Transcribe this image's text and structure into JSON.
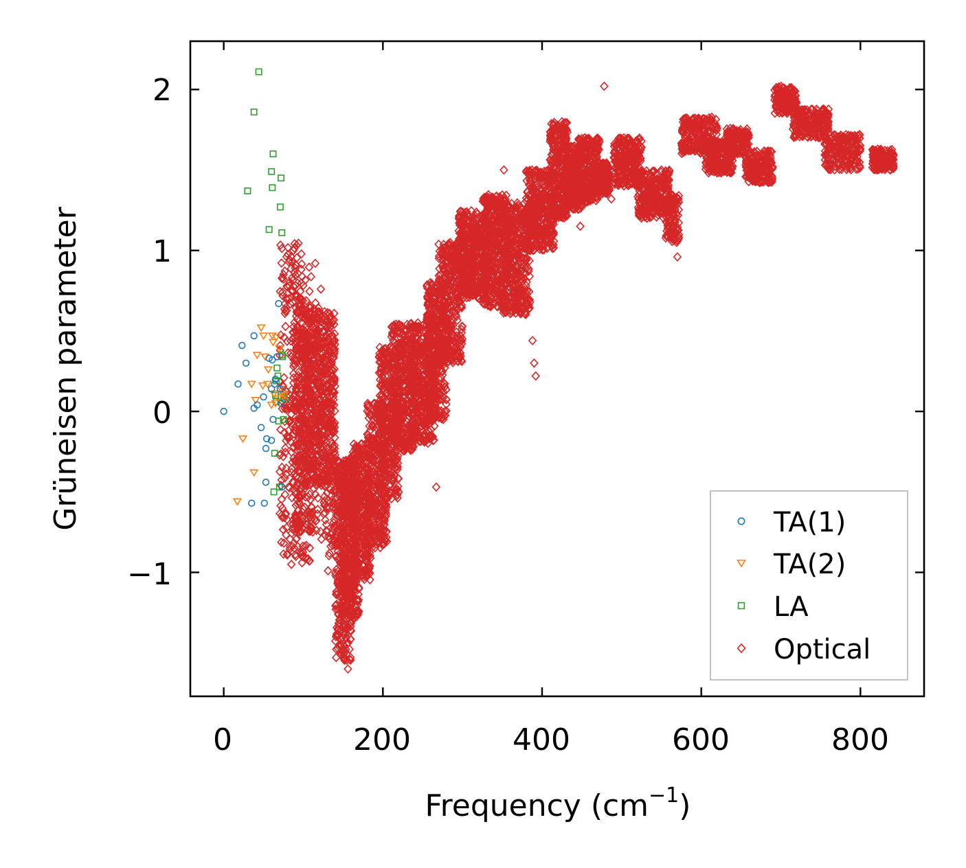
{
  "colors": {
    "TA(1)": "#1f77b4",
    "TA(2)": "#ff7f0e",
    "LA": "#2ca02c",
    "Optical": "#d62728"
  },
  "chart_data": {
    "type": "scatter",
    "title": "",
    "xlabel": "Frequency (cm",
    "xlabel_superscript": "−1",
    "xlabel_suffix": ")",
    "ylabel": "Grüneisen parameter",
    "xlim": [
      -42,
      880
    ],
    "ylim": [
      -1.77,
      2.3
    ],
    "xticks": [
      0,
      200,
      400,
      600,
      800
    ],
    "xtick_labels": [
      "0",
      "200",
      "400",
      "600",
      "800"
    ],
    "yticks": [
      -1,
      0,
      1,
      2
    ],
    "ytick_labels": [
      "−1",
      "0",
      "1",
      "2"
    ],
    "grid": false,
    "legend": {
      "position": "bottom-right",
      "entries": [
        "TA(1)",
        "TA(2)",
        "LA",
        "Optical"
      ]
    },
    "series": [
      {
        "name": "TA(1)",
        "marker": "circle",
        "points": [
          [
            0,
            0
          ],
          [
            18,
            0.17
          ],
          [
            23,
            0.41
          ],
          [
            28,
            0.3
          ],
          [
            35,
            -0.57
          ],
          [
            38,
            0.47
          ],
          [
            38,
            0.02
          ],
          [
            42,
            0.04
          ],
          [
            47,
            -0.1
          ],
          [
            50,
            0.09
          ],
          [
            51,
            -0.57
          ],
          [
            53,
            -0.44
          ],
          [
            53,
            -0.23
          ],
          [
            54,
            -0.17
          ],
          [
            57,
            0.33
          ],
          [
            60,
            -0.18
          ],
          [
            60,
            0.14
          ],
          [
            61,
            0.32
          ],
          [
            62,
            -0.05
          ],
          [
            64,
            0.17
          ],
          [
            65,
            0.2
          ],
          [
            67,
            0.34
          ],
          [
            69,
            0.67
          ],
          [
            71,
            0.14
          ],
          [
            72,
            0.05
          ],
          [
            73,
            -0.47
          ]
        ]
      },
      {
        "name": "TA(2)",
        "marker": "triangle-down",
        "points": [
          [
            17,
            -0.56
          ],
          [
            24,
            -0.17
          ],
          [
            35,
            0.17
          ],
          [
            38,
            -0.38
          ],
          [
            40,
            0.07
          ],
          [
            42,
            0.35
          ],
          [
            47,
            0.52
          ],
          [
            49,
            0.16
          ],
          [
            50,
            0.47
          ],
          [
            52,
            0.34
          ],
          [
            55,
            0.17
          ],
          [
            56,
            0.26
          ],
          [
            60,
            0.04
          ],
          [
            61,
            0.47
          ],
          [
            62,
            0.43
          ],
          [
            63,
            0.11
          ],
          [
            65,
            0.05
          ],
          [
            66,
            0.46
          ],
          [
            68,
            0.08
          ],
          [
            70,
            0.39
          ],
          [
            72,
            0.14
          ],
          [
            74,
            0.11
          ],
          [
            76,
            0.1
          ]
        ]
      },
      {
        "name": "LA",
        "marker": "square",
        "points": [
          [
            30,
            1.37
          ],
          [
            38,
            1.86
          ],
          [
            44,
            2.11
          ],
          [
            57,
            1.13
          ],
          [
            60,
            1.49
          ],
          [
            61,
            1.39
          ],
          [
            62,
            1.6
          ],
          [
            63,
            -0.5
          ],
          [
            64,
            -0.26
          ],
          [
            65,
            0.1
          ],
          [
            66,
            0.19
          ],
          [
            66,
            0.06
          ],
          [
            67,
            0.27
          ],
          [
            68,
            0.22
          ],
          [
            69,
            -0.06
          ],
          [
            70,
            -0.47
          ],
          [
            71,
            1.27
          ],
          [
            72,
            1.45
          ],
          [
            72,
            0.09
          ],
          [
            73,
            1.11
          ],
          [
            73,
            0.35
          ],
          [
            74,
            0.34
          ],
          [
            75,
            -0.05
          ],
          [
            76,
            0.08
          ]
        ]
      },
      {
        "name": "Optical",
        "marker": "diamond",
        "bands": [
          {
            "x": [
              70,
              100
            ],
            "y": [
              -0.9,
              1.05
            ],
            "n": 240
          },
          {
            "x": [
              85,
              110
            ],
            "y": [
              -0.95,
              0.9
            ],
            "n": 150
          },
          {
            "x": [
              90,
              120
            ],
            "y": [
              -0.75,
              0.7
            ],
            "n": 280
          },
          {
            "x": [
              100,
              140
            ],
            "y": [
              -0.45,
              0.62
            ],
            "n": 520
          },
          {
            "x": [
              120,
              140
            ],
            "y": [
              -0.9,
              0.3
            ],
            "n": 140
          },
          {
            "x": [
              140,
              160
            ],
            "y": [
              -1.55,
              -0.3
            ],
            "n": 340
          },
          {
            "x": [
              148,
              170
            ],
            "y": [
              -1.3,
              -0.3
            ],
            "n": 360
          },
          {
            "x": [
              160,
              185
            ],
            "y": [
              -1.05,
              -0.2
            ],
            "n": 360
          },
          {
            "x": [
              180,
              205
            ],
            "y": [
              -0.85,
              0.05
            ],
            "n": 340
          },
          {
            "x": [
              195,
              220
            ],
            "y": [
              -0.55,
              0.4
            ],
            "n": 340
          },
          {
            "x": [
              210,
              240
            ],
            "y": [
              -0.25,
              0.55
            ],
            "n": 420
          },
          {
            "x": [
              235,
              265
            ],
            "y": [
              -0.2,
              0.55
            ],
            "n": 420
          },
          {
            "x": [
              255,
              280
            ],
            "y": [
              -0.05,
              0.8
            ],
            "n": 360
          },
          {
            "x": [
              270,
              300
            ],
            "y": [
              0.3,
              1.05
            ],
            "n": 360
          },
          {
            "x": [
              295,
              330
            ],
            "y": [
              0.7,
              1.25
            ],
            "n": 420
          },
          {
            "x": [
              325,
              355
            ],
            "y": [
              0.65,
              1.35
            ],
            "n": 420
          },
          {
            "x": [
              350,
              385
            ],
            "y": [
              0.6,
              1.3
            ],
            "n": 420
          },
          {
            "x": [
              380,
              415
            ],
            "y": [
              1.0,
              1.5
            ],
            "n": 380
          },
          {
            "x": [
              410,
              432
            ],
            "y": [
              1.2,
              1.8
            ],
            "n": 320
          },
          {
            "x": [
              430,
              450
            ],
            "y": [
              1.25,
              1.65
            ],
            "n": 260
          },
          {
            "x": [
              445,
              472
            ],
            "y": [
              1.3,
              1.7
            ],
            "n": 320
          },
          {
            "x": [
              470,
              485
            ],
            "y": [
              1.35,
              1.55
            ],
            "n": 140
          },
          {
            "x": [
              490,
              525
            ],
            "y": [
              1.4,
              1.7
            ],
            "n": 260
          },
          {
            "x": [
              520,
              560
            ],
            "y": [
              1.2,
              1.5
            ],
            "n": 280
          },
          {
            "x": [
              555,
              572
            ],
            "y": [
              1.05,
              1.35
            ],
            "n": 110
          },
          {
            "x": [
              575,
              620
            ],
            "y": [
              1.6,
              1.83
            ],
            "n": 260
          },
          {
            "x": [
              605,
              640
            ],
            "y": [
              1.48,
              1.68
            ],
            "n": 200
          },
          {
            "x": [
              630,
              660
            ],
            "y": [
              1.6,
              1.76
            ],
            "n": 160
          },
          {
            "x": [
              655,
              690
            ],
            "y": [
              1.42,
              1.62
            ],
            "n": 200
          },
          {
            "x": [
              692,
              720
            ],
            "y": [
              1.85,
              2.02
            ],
            "n": 160
          },
          {
            "x": [
              715,
              760
            ],
            "y": [
              1.7,
              1.88
            ],
            "n": 220
          },
          {
            "x": [
              755,
              800
            ],
            "y": [
              1.5,
              1.72
            ],
            "n": 220
          },
          {
            "x": [
              815,
              842
            ],
            "y": [
              1.5,
              1.63
            ],
            "n": 150
          }
        ],
        "outliers": [
          [
            85,
            -0.95
          ],
          [
            89,
            -0.85
          ],
          [
            95,
            0.65
          ],
          [
            115,
            0.92
          ],
          [
            122,
            0.76
          ],
          [
            131,
            -0.99
          ],
          [
            156,
            -1.6
          ],
          [
            267,
            -0.47
          ],
          [
            300,
            1.15
          ],
          [
            352,
            1.5
          ],
          [
            388,
            0.44
          ],
          [
            390,
            0.3
          ],
          [
            392,
            0.22
          ],
          [
            448,
            1.15
          ],
          [
            478,
            2.02
          ],
          [
            487,
            1.32
          ],
          [
            569,
            1.05
          ],
          [
            570,
            0.96
          ]
        ]
      }
    ]
  }
}
